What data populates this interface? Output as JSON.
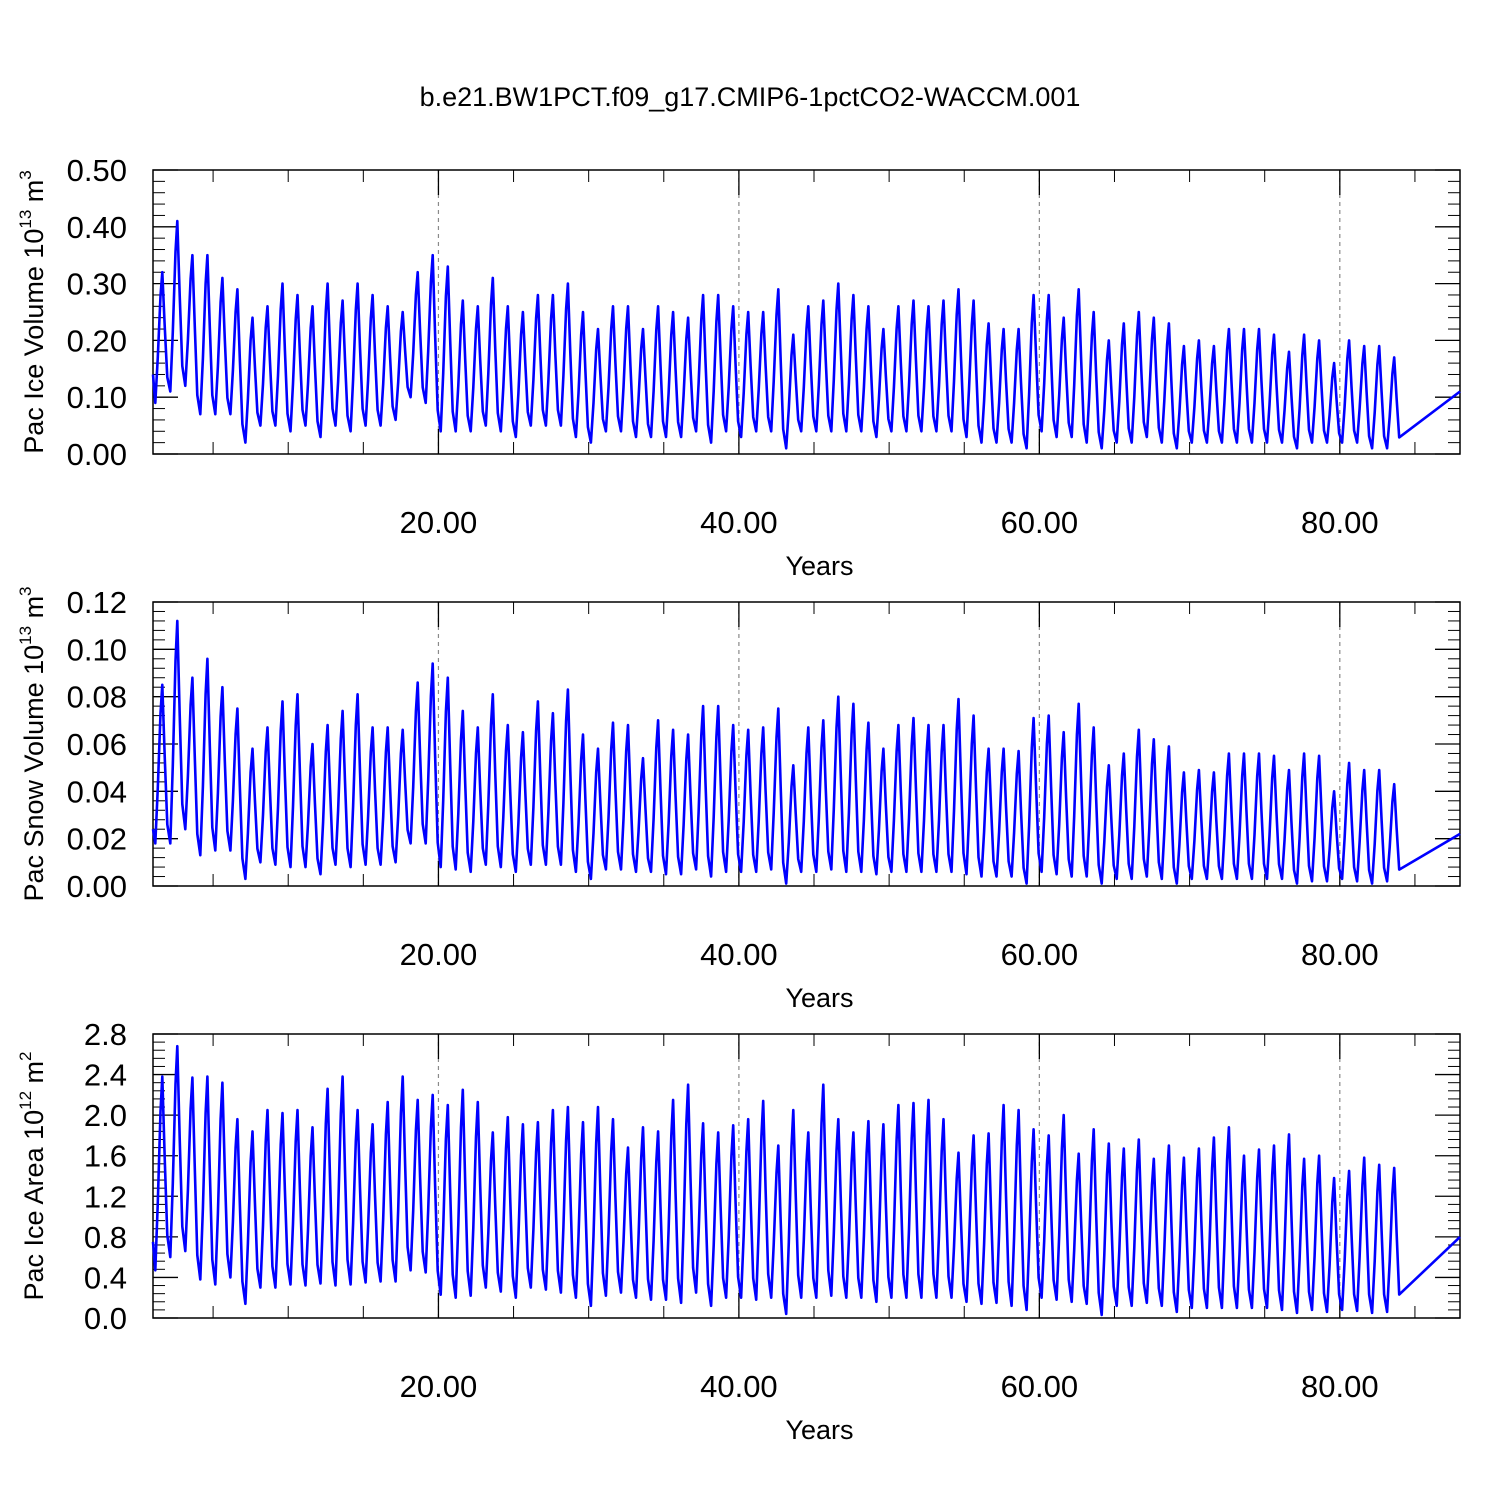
{
  "title": "b.e21.BW1PCT.f09_g17.CMIP6-1pctCO2-WACCM.001",
  "line_color": "#0000ff",
  "chart_data": [
    {
      "type": "line",
      "title": "",
      "xlabel": "Years",
      "ylabel": {
        "base": "Pac Ice Volume 10",
        "exp": "13",
        "unit": " m",
        "unit_exp": "3"
      },
      "xlim": [
        1,
        88
      ],
      "ylim": [
        0,
        0.5
      ],
      "xticks": [
        20,
        40,
        60,
        80
      ],
      "xtick_labels": [
        "20.00",
        "40.00",
        "60.00",
        "80.00"
      ],
      "yticks": [
        0,
        0.1,
        0.2,
        0.3,
        0.4,
        0.5
      ],
      "ytick_labels": [
        "0.00",
        "0.10",
        "0.20",
        "0.30",
        "0.40",
        "0.50"
      ],
      "grid": "vertical dashed at major x ticks",
      "series": [
        {
          "start_year": 1,
          "start_value": 0.14,
          "end_value": 0.11,
          "annual_max": [
            0.32,
            0.41,
            0.35,
            0.35,
            0.31,
            0.29,
            0.24,
            0.26,
            0.3,
            0.28,
            0.26,
            0.3,
            0.27,
            0.3,
            0.28,
            0.26,
            0.25,
            0.32,
            0.35,
            0.33,
            0.27,
            0.26,
            0.31,
            0.26,
            0.25,
            0.28,
            0.28,
            0.3,
            0.25,
            0.22,
            0.26,
            0.26,
            0.22,
            0.26,
            0.25,
            0.24,
            0.28,
            0.28,
            0.26,
            0.25,
            0.25,
            0.29,
            0.21,
            0.26,
            0.27,
            0.3,
            0.28,
            0.26,
            0.22,
            0.26,
            0.27,
            0.26,
            0.27,
            0.29,
            0.27,
            0.23,
            0.22,
            0.22,
            0.28,
            0.28,
            0.24,
            0.29,
            0.25,
            0.2,
            0.23,
            0.25,
            0.24,
            0.23,
            0.19,
            0.2,
            0.19,
            0.22,
            0.22,
            0.22,
            0.21,
            0.18,
            0.21,
            0.2,
            0.16,
            0.2,
            0.19,
            0.19,
            0.17
          ],
          "annual_min": [
            0.09,
            0.11,
            0.12,
            0.07,
            0.07,
            0.07,
            0.02,
            0.05,
            0.05,
            0.04,
            0.05,
            0.03,
            0.05,
            0.04,
            0.05,
            0.05,
            0.06,
            0.1,
            0.09,
            0.04,
            0.04,
            0.04,
            0.05,
            0.04,
            0.03,
            0.05,
            0.05,
            0.05,
            0.03,
            0.02,
            0.04,
            0.04,
            0.03,
            0.03,
            0.03,
            0.03,
            0.04,
            0.02,
            0.04,
            0.03,
            0.04,
            0.04,
            0.01,
            0.04,
            0.04,
            0.04,
            0.04,
            0.04,
            0.03,
            0.04,
            0.04,
            0.04,
            0.04,
            0.04,
            0.03,
            0.02,
            0.02,
            0.02,
            0.01,
            0.04,
            0.03,
            0.03,
            0.02,
            0.01,
            0.02,
            0.02,
            0.03,
            0.02,
            0.01,
            0.02,
            0.02,
            0.02,
            0.02,
            0.02,
            0.02,
            0.02,
            0.01,
            0.02,
            0.02,
            0.02,
            0.02,
            0.01,
            0.01
          ]
        }
      ]
    },
    {
      "type": "line",
      "title": "",
      "xlabel": "Years",
      "ylabel": {
        "base": "Pac Snow Volume 10",
        "exp": "13",
        "unit": " m",
        "unit_exp": "3"
      },
      "xlim": [
        1,
        88
      ],
      "ylim": [
        0,
        0.12
      ],
      "xticks": [
        20,
        40,
        60,
        80
      ],
      "xtick_labels": [
        "20.00",
        "40.00",
        "60.00",
        "80.00"
      ],
      "yticks": [
        0,
        0.02,
        0.04,
        0.06,
        0.08,
        0.1,
        0.12
      ],
      "ytick_labels": [
        "0.00",
        "0.02",
        "0.04",
        "0.06",
        "0.08",
        "0.10",
        "0.12"
      ],
      "grid": "vertical dashed at major x ticks",
      "series": [
        {
          "start_year": 1,
          "start_value": 0.024,
          "end_value": 0.022,
          "annual_max": [
            0.085,
            0.112,
            0.088,
            0.096,
            0.084,
            0.075,
            0.058,
            0.067,
            0.078,
            0.081,
            0.06,
            0.068,
            0.074,
            0.081,
            0.067,
            0.067,
            0.066,
            0.086,
            0.094,
            0.088,
            0.074,
            0.067,
            0.081,
            0.068,
            0.065,
            0.078,
            0.073,
            0.083,
            0.064,
            0.058,
            0.069,
            0.068,
            0.054,
            0.07,
            0.066,
            0.064,
            0.076,
            0.076,
            0.068,
            0.066,
            0.067,
            0.075,
            0.051,
            0.067,
            0.07,
            0.08,
            0.077,
            0.069,
            0.058,
            0.068,
            0.071,
            0.068,
            0.068,
            0.079,
            0.072,
            0.058,
            0.058,
            0.057,
            0.071,
            0.072,
            0.065,
            0.077,
            0.067,
            0.051,
            0.056,
            0.066,
            0.062,
            0.059,
            0.048,
            0.049,
            0.048,
            0.056,
            0.056,
            0.056,
            0.055,
            0.049,
            0.056,
            0.055,
            0.04,
            0.052,
            0.049,
            0.049,
            0.043
          ],
          "annual_min": [
            0.018,
            0.018,
            0.024,
            0.013,
            0.015,
            0.015,
            0.003,
            0.01,
            0.009,
            0.008,
            0.008,
            0.005,
            0.009,
            0.008,
            0.009,
            0.009,
            0.01,
            0.018,
            0.018,
            0.008,
            0.007,
            0.006,
            0.009,
            0.008,
            0.006,
            0.009,
            0.009,
            0.009,
            0.006,
            0.003,
            0.007,
            0.007,
            0.006,
            0.006,
            0.005,
            0.005,
            0.007,
            0.004,
            0.006,
            0.006,
            0.006,
            0.007,
            0.001,
            0.006,
            0.006,
            0.007,
            0.006,
            0.006,
            0.005,
            0.006,
            0.006,
            0.006,
            0.006,
            0.006,
            0.005,
            0.004,
            0.004,
            0.004,
            0.001,
            0.006,
            0.005,
            0.004,
            0.004,
            0.001,
            0.003,
            0.003,
            0.004,
            0.003,
            0.001,
            0.003,
            0.003,
            0.003,
            0.003,
            0.003,
            0.003,
            0.003,
            0.001,
            0.002,
            0.002,
            0.003,
            0.002,
            0.001,
            0.002
          ]
        }
      ]
    },
    {
      "type": "line",
      "title": "",
      "xlabel": "Years",
      "ylabel": {
        "base": "Pac Ice Area 10",
        "exp": "12",
        "unit": " m",
        "unit_exp": "2"
      },
      "xlim": [
        1,
        88
      ],
      "ylim": [
        0,
        2.8
      ],
      "xticks": [
        20,
        40,
        60,
        80
      ],
      "xtick_labels": [
        "20.00",
        "40.00",
        "60.00",
        "80.00"
      ],
      "yticks": [
        0,
        0.4,
        0.8,
        1.2,
        1.6,
        2.0,
        2.4,
        2.8
      ],
      "ytick_labels": [
        "0.0",
        "0.4",
        "0.8",
        "1.2",
        "1.6",
        "2.0",
        "2.4",
        "2.8"
      ],
      "grid": "vertical dashed at major x ticks",
      "series": [
        {
          "start_year": 1,
          "start_value": 0.75,
          "end_value": 0.8,
          "annual_max": [
            2.38,
            2.68,
            2.37,
            2.38,
            2.32,
            1.96,
            1.84,
            2.05,
            2.02,
            2.05,
            1.88,
            2.26,
            2.38,
            2.05,
            1.91,
            2.13,
            2.38,
            2.15,
            2.2,
            2.1,
            2.25,
            2.13,
            1.83,
            1.98,
            1.91,
            1.93,
            2.05,
            2.08,
            1.93,
            2.08,
            1.96,
            1.68,
            1.88,
            1.84,
            2.15,
            2.3,
            1.92,
            1.83,
            1.9,
            1.96,
            2.14,
            1.7,
            2.05,
            1.83,
            2.3,
            1.96,
            1.83,
            1.94,
            1.91,
            2.1,
            2.12,
            2.15,
            1.96,
            1.63,
            1.8,
            1.82,
            2.1,
            2.05,
            1.86,
            1.8,
            2.0,
            1.62,
            1.86,
            1.72,
            1.67,
            1.76,
            1.57,
            1.7,
            1.58,
            1.67,
            1.78,
            1.88,
            1.6,
            1.66,
            1.7,
            1.81,
            1.57,
            1.6,
            1.38,
            1.45,
            1.58,
            1.51,
            1.48
          ],
          "annual_min": [
            0.47,
            0.6,
            0.66,
            0.38,
            0.33,
            0.4,
            0.14,
            0.3,
            0.3,
            0.33,
            0.32,
            0.34,
            0.32,
            0.33,
            0.35,
            0.36,
            0.36,
            0.47,
            0.45,
            0.23,
            0.2,
            0.22,
            0.3,
            0.26,
            0.2,
            0.3,
            0.28,
            0.25,
            0.2,
            0.12,
            0.22,
            0.25,
            0.2,
            0.18,
            0.18,
            0.15,
            0.25,
            0.12,
            0.2,
            0.2,
            0.18,
            0.2,
            0.04,
            0.2,
            0.2,
            0.22,
            0.2,
            0.2,
            0.16,
            0.2,
            0.2,
            0.2,
            0.2,
            0.2,
            0.16,
            0.14,
            0.15,
            0.12,
            0.08,
            0.2,
            0.18,
            0.16,
            0.14,
            0.03,
            0.12,
            0.12,
            0.15,
            0.12,
            0.06,
            0.1,
            0.1,
            0.1,
            0.1,
            0.1,
            0.1,
            0.08,
            0.05,
            0.08,
            0.06,
            0.08,
            0.07,
            0.05,
            0.06
          ]
        }
      ]
    }
  ]
}
